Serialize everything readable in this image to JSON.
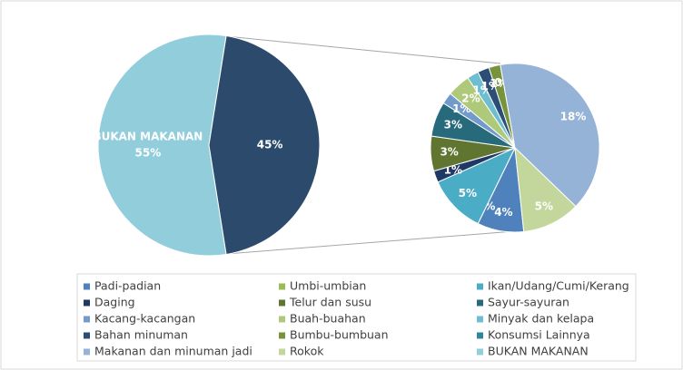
{
  "chart_data": [
    {
      "type": "pie",
      "categories": [
        "BUKAN MAKANAN",
        null
      ],
      "values": [
        55,
        45
      ],
      "value_labels": [
        "55%",
        "45%"
      ],
      "colors": [
        "#92cddc",
        "#2c4a6b"
      ]
    },
    {
      "type": "pie",
      "categories": [
        "Padi-padian",
        "Umbi-umbian",
        "Ikan/Udang/Cumi/Kerang",
        "Daging",
        "Telur dan susu",
        "Sayur-sayuran",
        "Kacang-kacangan",
        "Buah-buahan",
        "Minyak dan kelapa",
        "Bahan minuman",
        "Bumbu-bumbuan",
        "Konsumsi Lainnya",
        "Makanan dan minuman jadi",
        "Rokok"
      ],
      "values": [
        4,
        0,
        5,
        1,
        3,
        3,
        1,
        2,
        1,
        1,
        1,
        0,
        18,
        5
      ],
      "value_labels": [
        "4%",
        "0%",
        "5%",
        "1%",
        "3%",
        "3%",
        "1%",
        "2%",
        "1%",
        "1%",
        "1%",
        "0%",
        "18%",
        "5%"
      ],
      "colors": [
        "#4f81bd",
        "#9bbb59",
        "#4bacc6",
        "#1f3864",
        "#5f7530",
        "#276a7c",
        "#729aca",
        "#afc97a",
        "#6fbdd1",
        "#2c4d75",
        "#77933c",
        "#31859c",
        "#95b3d7",
        "#c3d69b"
      ]
    }
  ]
}
